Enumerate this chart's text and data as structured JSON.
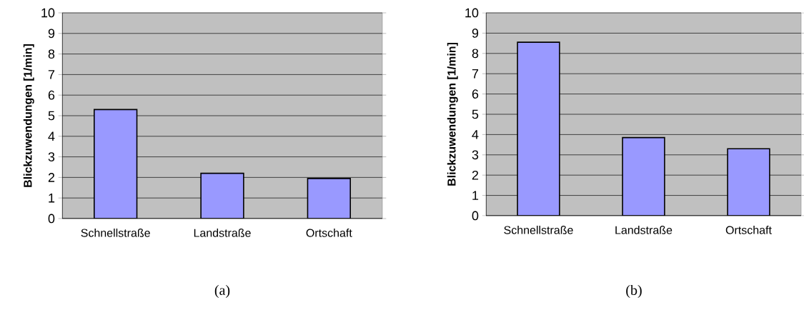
{
  "chart_data": [
    {
      "type": "bar",
      "categories": [
        "Schnellstraße",
        "Landstraße",
        "Ortschaft"
      ],
      "values": [
        5.3,
        2.2,
        1.95
      ],
      "color": "#9999ff",
      "ylabel": "Blickzuwendungen [1/min]",
      "ylim": [
        0,
        10
      ],
      "yticks": [
        0,
        1,
        2,
        3,
        4,
        5,
        6,
        7,
        8,
        9,
        10
      ],
      "grid": "y",
      "annotations": [
        "(a)"
      ]
    },
    {
      "type": "bar",
      "categories": [
        "Schnellstraße",
        "Landstraße",
        "Ortschaft"
      ],
      "values": [
        8.55,
        3.85,
        3.3
      ],
      "color": "#9999ff",
      "ylabel": "Blickzuwendungen [1/min]",
      "ylim": [
        0,
        10
      ],
      "yticks": [
        0,
        1,
        2,
        3,
        4,
        5,
        6,
        7,
        8,
        9,
        10
      ],
      "grid": "y",
      "annotations": [
        "(b)"
      ]
    }
  ]
}
